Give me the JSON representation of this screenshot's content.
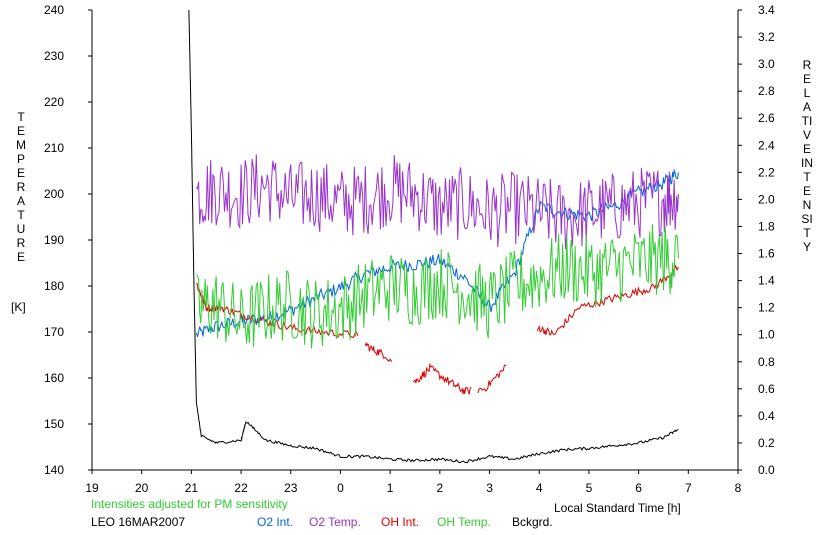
{
  "chart_data": {
    "type": "line",
    "ylabel_left": "TEMPERATURE",
    "ylabel_left_unit": "[K]",
    "ylabel_right": "RELATIVE INTENSITY",
    "xlabel": "Local Standard Time [h]",
    "note": "Intensities adjusted for PM sensitivity",
    "station": "LEO 16MAR2007",
    "grid": false,
    "xlim": [
      19,
      32
    ],
    "ylim_left": [
      140,
      240
    ],
    "ylim_right": [
      0.0,
      3.4
    ],
    "x_ticks": [
      "19",
      "20",
      "21",
      "22",
      "23",
      "0",
      "1",
      "2",
      "3",
      "4",
      "5",
      "6",
      "7",
      "8"
    ],
    "y_left_ticks": [
      "140",
      "150",
      "160",
      "170",
      "180",
      "190",
      "200",
      "210",
      "220",
      "230",
      "240"
    ],
    "y_right_ticks": [
      "0.0",
      "0.2",
      "0.4",
      "0.6",
      "0.8",
      "1.0",
      "1.2",
      "1.4",
      "1.6",
      "1.8",
      "2.0",
      "2.2",
      "2.4",
      "2.6",
      "2.8",
      "3.0",
      "3.2",
      "3.4"
    ],
    "series": [
      {
        "name": "O2 Int.",
        "color": "#0066dd",
        "axis": "right",
        "x": [
          21.1,
          21.5,
          22.0,
          22.5,
          23.0,
          23.5,
          24.0,
          24.5,
          25.0,
          25.5,
          26.0,
          26.5,
          27.0,
          27.5,
          28.0,
          28.5,
          29.0,
          29.5,
          30.0,
          30.5,
          30.8
        ],
        "y": [
          1.0,
          1.06,
          1.1,
          1.12,
          1.18,
          1.27,
          1.35,
          1.45,
          1.5,
          1.52,
          1.55,
          1.42,
          1.2,
          1.45,
          1.95,
          1.9,
          1.88,
          1.95,
          2.05,
          2.12,
          2.2
        ]
      },
      {
        "name": "O2 Temp.",
        "color": "#9933cc",
        "axis": "left",
        "x": [
          21.1,
          21.5,
          22.0,
          22.5,
          23.0,
          23.5,
          24.0,
          24.5,
          25.0,
          25.5,
          26.0,
          26.5,
          27.0,
          27.5,
          28.0,
          28.5,
          29.0,
          29.5,
          30.0,
          30.5,
          30.8
        ],
        "y": [
          200,
          201,
          200,
          202,
          199,
          200,
          198,
          199,
          201,
          200,
          197,
          198,
          196,
          197,
          196,
          195,
          196,
          197,
          198,
          199,
          200
        ]
      },
      {
        "name": "OH Int.",
        "color": "#dd0000",
        "axis": "right",
        "x": [
          21.1,
          21.3,
          21.6,
          22.0,
          22.5,
          23.0,
          23.6,
          24.3,
          24.6,
          24.9,
          25.5,
          25.8,
          26.2,
          26.5,
          26.9,
          27.3,
          28.0,
          28.3,
          28.8,
          29.3,
          29.8,
          30.3,
          30.8
        ],
        "y": [
          1.38,
          1.2,
          1.2,
          1.15,
          1.1,
          1.05,
          1.02,
          1.0,
          0.9,
          0.85,
          0.65,
          0.75,
          0.65,
          0.58,
          0.6,
          0.75,
          1.05,
          1.0,
          1.2,
          1.25,
          1.3,
          1.35,
          1.5
        ]
      },
      {
        "name": "OH Temp.",
        "color": "#33cc33",
        "axis": "left",
        "x": [
          21.1,
          21.5,
          22.0,
          22.5,
          23.0,
          23.5,
          24.0,
          24.5,
          25.0,
          25.5,
          26.0,
          26.5,
          27.0,
          27.5,
          28.0,
          28.5,
          29.0,
          29.5,
          30.0,
          30.5,
          30.8
        ],
        "y": [
          175,
          176,
          172,
          175,
          176,
          174,
          175,
          178,
          180,
          179,
          181,
          179,
          176,
          180,
          182,
          184,
          183,
          184,
          185,
          186,
          186
        ]
      },
      {
        "name": "Bckgrd.",
        "color": "#000000",
        "axis": "right",
        "x": [
          20.95,
          21.0,
          21.05,
          21.1,
          21.2,
          21.5,
          22.0,
          22.1,
          22.5,
          23.0,
          23.5,
          24.0,
          24.5,
          25.0,
          25.5,
          26.0,
          26.5,
          27.0,
          27.5,
          28.0,
          28.5,
          29.0,
          29.5,
          30.0,
          30.5,
          30.8
        ],
        "y": [
          3.4,
          2.5,
          1.4,
          0.5,
          0.25,
          0.2,
          0.22,
          0.36,
          0.22,
          0.18,
          0.16,
          0.1,
          0.1,
          0.08,
          0.07,
          0.08,
          0.06,
          0.1,
          0.08,
          0.12,
          0.15,
          0.16,
          0.18,
          0.2,
          0.24,
          0.3
        ]
      }
    ]
  }
}
